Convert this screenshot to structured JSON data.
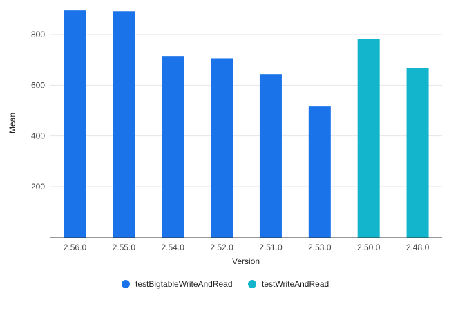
{
  "chart_data": {
    "type": "bar",
    "xlabel": "Version",
    "ylabel": "Mean",
    "ylim": [
      0,
      900
    ],
    "yticks": [
      200,
      400,
      600,
      800
    ],
    "grid": true,
    "legend_position": "bottom",
    "categories": [
      "2.56.0",
      "2.55.0",
      "2.54.0",
      "2.52.0",
      "2.51.0",
      "2.53.0",
      "2.50.0",
      "2.48.0"
    ],
    "series": [
      {
        "name": "testBigtableWriteAndRead",
        "color": "#1a73e8",
        "values": [
          895,
          892,
          715,
          706,
          644,
          516,
          null,
          null
        ]
      },
      {
        "name": "testWriteAndRead",
        "color": "#12b5cb",
        "values": [
          null,
          null,
          null,
          null,
          null,
          null,
          782,
          668
        ]
      }
    ]
  }
}
